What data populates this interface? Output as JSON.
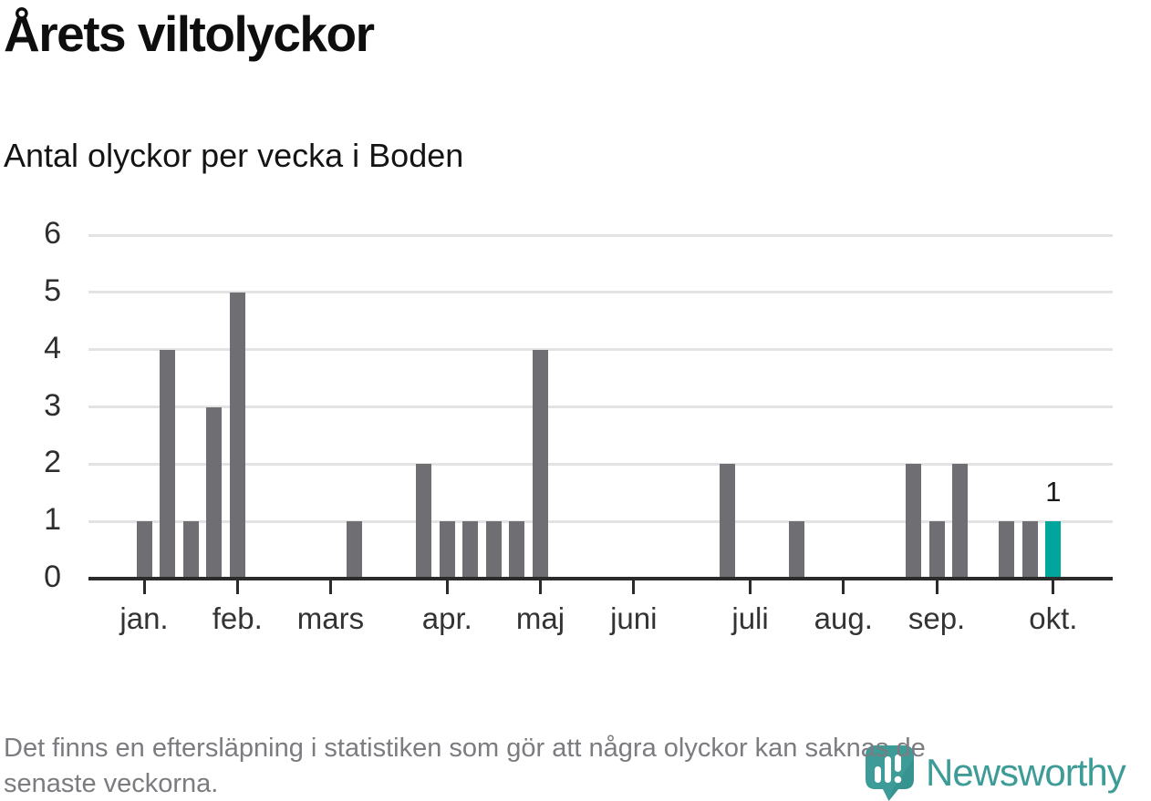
{
  "title": "Årets viltolyckor",
  "subtitle": "Antal olyckor per vecka i Boden",
  "footer": {
    "lines": [
      "Det finns en eftersläpning i statistiken som gör att några olyckor kan saknas de",
      "senaste veckorna."
    ]
  },
  "logo": {
    "name": "Newsworthy",
    "color": "#3d9c98"
  },
  "chart_data": {
    "type": "bar",
    "title": "Årets viltolyckor",
    "subtitle": "Antal olyckor per vecka i Boden",
    "x_unit": "vecka",
    "x": [
      1,
      2,
      3,
      4,
      5,
      6,
      7,
      8,
      9,
      10,
      11,
      12,
      13,
      14,
      15,
      16,
      17,
      18,
      19,
      20,
      21,
      22,
      23,
      24,
      25,
      26,
      27,
      28,
      29,
      30,
      31,
      32,
      33,
      34,
      35,
      36,
      37,
      38,
      39,
      40
    ],
    "values": [
      1,
      4,
      1,
      3,
      5,
      0,
      0,
      0,
      0,
      1,
      0,
      0,
      2,
      1,
      1,
      1,
      1,
      4,
      0,
      0,
      0,
      0,
      0,
      0,
      0,
      2,
      0,
      0,
      1,
      0,
      0,
      0,
      0,
      2,
      1,
      2,
      0,
      1,
      1,
      1
    ],
    "highlight_week": 40,
    "annotation": {
      "week": 40,
      "label": "1"
    },
    "x_axis": {
      "tick_labels": [
        "jan.",
        "feb.",
        "mars",
        "apr.",
        "maj",
        "juni",
        "juli",
        "aug.",
        "sep.",
        "okt."
      ],
      "tick_weeks": [
        1,
        5,
        9,
        14,
        18,
        22,
        27,
        31,
        35,
        40
      ]
    },
    "y_axis": {
      "tick_labels": [
        "0",
        "1",
        "2",
        "3",
        "4",
        "5",
        "6"
      ],
      "range": [
        0,
        6
      ],
      "grid": true
    },
    "legend": "none",
    "colors": {
      "bar": "#6e6e73",
      "highlight": "#00a69b",
      "grid": "#e3e3e3",
      "axis": "#2b2b2b"
    }
  }
}
